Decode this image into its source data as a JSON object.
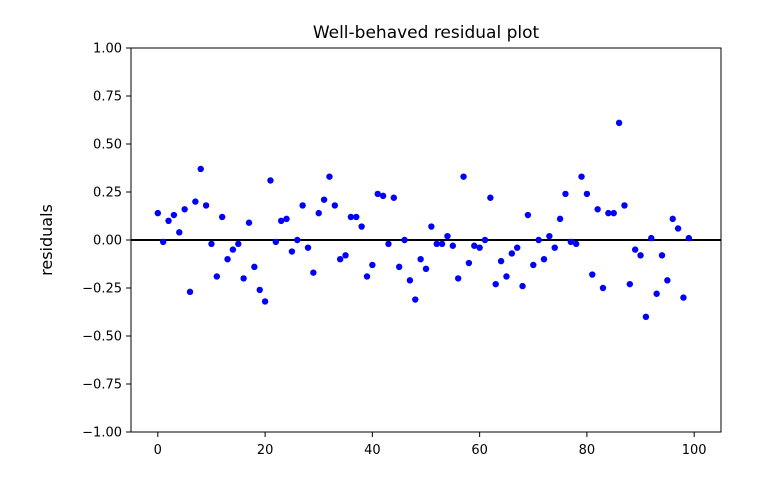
{
  "chart_data": {
    "type": "scatter",
    "title": "Well-behaved residual plot",
    "xlabel": "",
    "ylabel": "residuals",
    "xlim": [
      -5,
      105
    ],
    "ylim": [
      -1.0,
      1.0
    ],
    "x_ticks": [
      "0",
      "20",
      "40",
      "60",
      "80",
      "100"
    ],
    "y_ticks": [
      "1.00",
      "0.75",
      "0.50",
      "0.25",
      "0.00",
      "−0.25",
      "−0.50",
      "−0.75",
      "−1.00"
    ],
    "grid": false,
    "legend": "none",
    "point_color": "#0000ff",
    "zero_line_color": "#000000",
    "zero_line_y": 0,
    "series": [
      {
        "x": [
          0,
          1,
          2,
          3,
          4,
          5,
          6,
          7,
          8,
          9,
          10,
          11,
          12,
          13,
          14,
          15,
          16,
          17,
          18,
          19,
          20,
          21,
          22,
          23,
          24,
          25,
          26,
          27,
          28,
          29,
          30,
          31,
          32,
          33,
          34,
          35,
          36,
          37,
          38,
          39,
          40,
          41,
          42,
          43,
          44,
          45,
          46,
          47,
          48,
          49,
          50,
          51,
          52,
          53,
          54,
          55,
          56,
          57,
          58,
          59,
          60,
          61,
          62,
          63,
          64,
          65,
          66,
          67,
          68,
          69,
          70,
          71,
          72,
          73,
          74,
          75,
          76,
          77,
          78,
          79,
          80,
          81,
          82,
          83,
          84,
          85,
          86,
          87,
          88,
          89,
          90,
          91,
          92,
          93,
          94,
          95,
          96,
          97,
          98,
          99
        ],
        "y": [
          0.14,
          -0.01,
          0.1,
          0.13,
          0.04,
          0.16,
          -0.27,
          0.2,
          0.37,
          0.18,
          -0.02,
          -0.19,
          0.12,
          -0.1,
          -0.05,
          -0.02,
          -0.2,
          0.09,
          -0.14,
          -0.26,
          -0.32,
          0.31,
          -0.01,
          0.1,
          0.11,
          -0.06,
          0.0,
          0.18,
          -0.04,
          -0.17,
          0.14,
          0.21,
          0.33,
          0.18,
          -0.1,
          -0.08,
          0.12,
          0.12,
          0.07,
          -0.19,
          -0.13,
          0.24,
          0.23,
          -0.02,
          0.22,
          -0.14,
          0.0,
          -0.21,
          -0.31,
          -0.1,
          -0.15,
          0.07,
          -0.02,
          -0.02,
          0.02,
          -0.03,
          -0.2,
          0.33,
          -0.12,
          -0.03,
          -0.04,
          0.0,
          0.22,
          -0.23,
          -0.11,
          -0.19,
          -0.07,
          -0.04,
          -0.24,
          0.13,
          -0.13,
          0.0,
          -0.1,
          0.02,
          -0.04,
          0.11,
          0.24,
          -0.01,
          -0.02,
          0.33,
          0.24,
          -0.18,
          0.16,
          -0.25,
          0.14,
          0.14,
          0.61,
          0.18,
          -0.23,
          -0.05,
          -0.08,
          -0.4,
          0.01,
          -0.28,
          -0.08,
          -0.21,
          0.11,
          0.06,
          -0.3,
          0.01
        ]
      }
    ]
  }
}
